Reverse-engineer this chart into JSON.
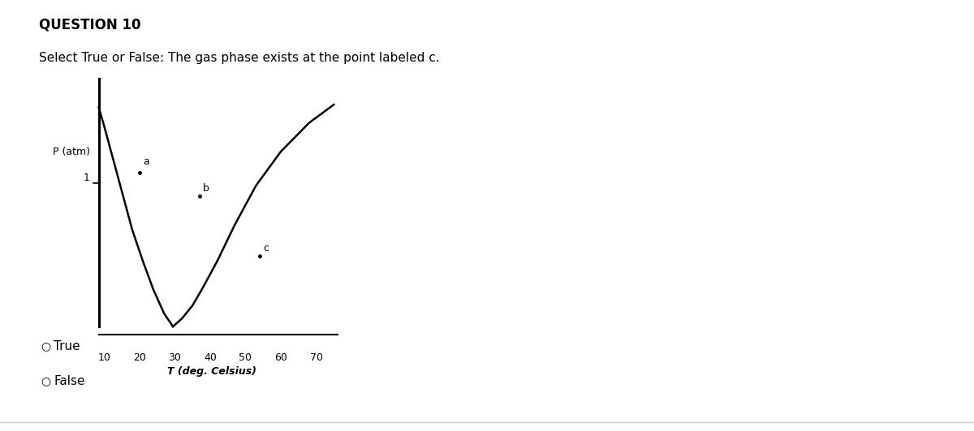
{
  "title": "QUESTION 10",
  "subtitle": "Select True or False: The gas phase exists at the point labeled c.",
  "xlabel": "T (deg. Celsius)",
  "ylabel_line1": "P (atm)",
  "ylabel_line2": "1",
  "x_ticks": [
    10,
    20,
    30,
    40,
    50,
    60,
    70
  ],
  "background_color": "#ffffff",
  "point_a": [
    20,
    0.72
  ],
  "point_b": [
    37,
    0.63
  ],
  "point_c": [
    54,
    0.4
  ],
  "curve1_x": [
    8.5,
    10,
    12,
    15,
    18,
    21,
    24,
    27,
    29.5
  ],
  "curve1_y": [
    0.97,
    0.9,
    0.8,
    0.65,
    0.5,
    0.38,
    0.27,
    0.18,
    0.13
  ],
  "curve2_x": [
    29.5,
    32,
    35,
    38,
    42,
    47,
    53,
    60,
    68,
    75
  ],
  "curve2_y": [
    0.13,
    0.16,
    0.21,
    0.28,
    0.38,
    0.52,
    0.67,
    0.8,
    0.91,
    0.98
  ],
  "true_label": "True",
  "false_label": "False"
}
